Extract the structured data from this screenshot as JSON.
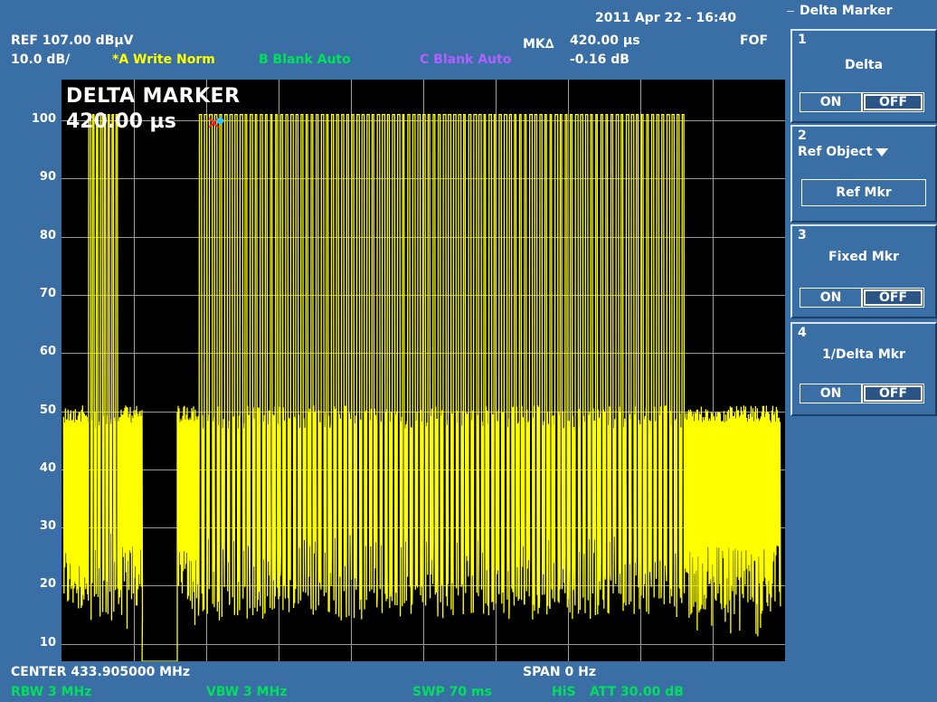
{
  "header": {
    "datetime": "2011 Apr 22 - 16:40",
    "ref_level": "REF  107.00 dBµV",
    "scale": "10.0 dB/",
    "trace_a": "*A Write Norm",
    "trace_b": "B Blank Auto",
    "trace_c": "C Blank Auto",
    "mk_label": "MK∆",
    "mk_time": "420.00 µs",
    "mk_level": "-0.16 dB",
    "fof": "FOF"
  },
  "display": {
    "title": "DELTA MARKER",
    "value": "420.00 µs"
  },
  "footer": {
    "center": "CENTER 433.905000 MHz",
    "span": "SPAN 0 Hz",
    "rbw": "RBW  3 MHz",
    "vbw": "VBW  3 MHz",
    "swp": "SWP  70 ms",
    "his": "HiS",
    "att": "ATT  30.00 dB"
  },
  "colors": {
    "trace": "#ffff00",
    "background": "#3a6fa6",
    "plot_bg": "#000000",
    "grid": "#ffffff",
    "marker": "#ff2020"
  },
  "softkeys": {
    "title": "Delta Marker",
    "items": [
      {
        "num": "1",
        "label": "Delta",
        "on": "ON",
        "off": "OFF"
      },
      {
        "num": "2",
        "label": "Ref Object",
        "sub": "Ref Mkr"
      },
      {
        "num": "3",
        "label": "Fixed Mkr",
        "on": "ON",
        "off": "OFF"
      },
      {
        "num": "4",
        "label": "1/Delta Mkr",
        "on": "ON",
        "off": "OFF"
      }
    ]
  },
  "chart_data": {
    "type": "line",
    "title": "",
    "xlabel": "",
    "ylabel": "",
    "y_ticks": [
      100,
      90,
      80,
      70,
      60,
      50,
      40,
      30,
      20,
      10
    ],
    "ylim": [
      7,
      107
    ],
    "xlim": [
      0,
      70
    ],
    "x_units": "ms",
    "grid": true,
    "series": [
      {
        "noise_floor_range": [
          15,
          51
        ],
        "pulse_high_level": 101,
        "pulse_low_level": 14,
        "segments": [
          {
            "kind": "noise",
            "start": 0.2,
            "end": 2.6
          },
          {
            "kind": "pulses",
            "start": 2.6,
            "end": 5.6,
            "count": 8,
            "peak": 101
          },
          {
            "kind": "noise",
            "start": 5.6,
            "end": 7.8
          },
          {
            "kind": "gap",
            "start": 7.8,
            "end": 11.2
          },
          {
            "kind": "noise",
            "start": 11.2,
            "end": 13.3
          },
          {
            "kind": "pulses",
            "start": 13.3,
            "end": 60.5,
            "count": 96,
            "peak": 101
          },
          {
            "kind": "noise",
            "start": 60.5,
            "end": 69.6
          }
        ]
      }
    ],
    "marker": {
      "x": 14.0,
      "y": 101
    }
  }
}
